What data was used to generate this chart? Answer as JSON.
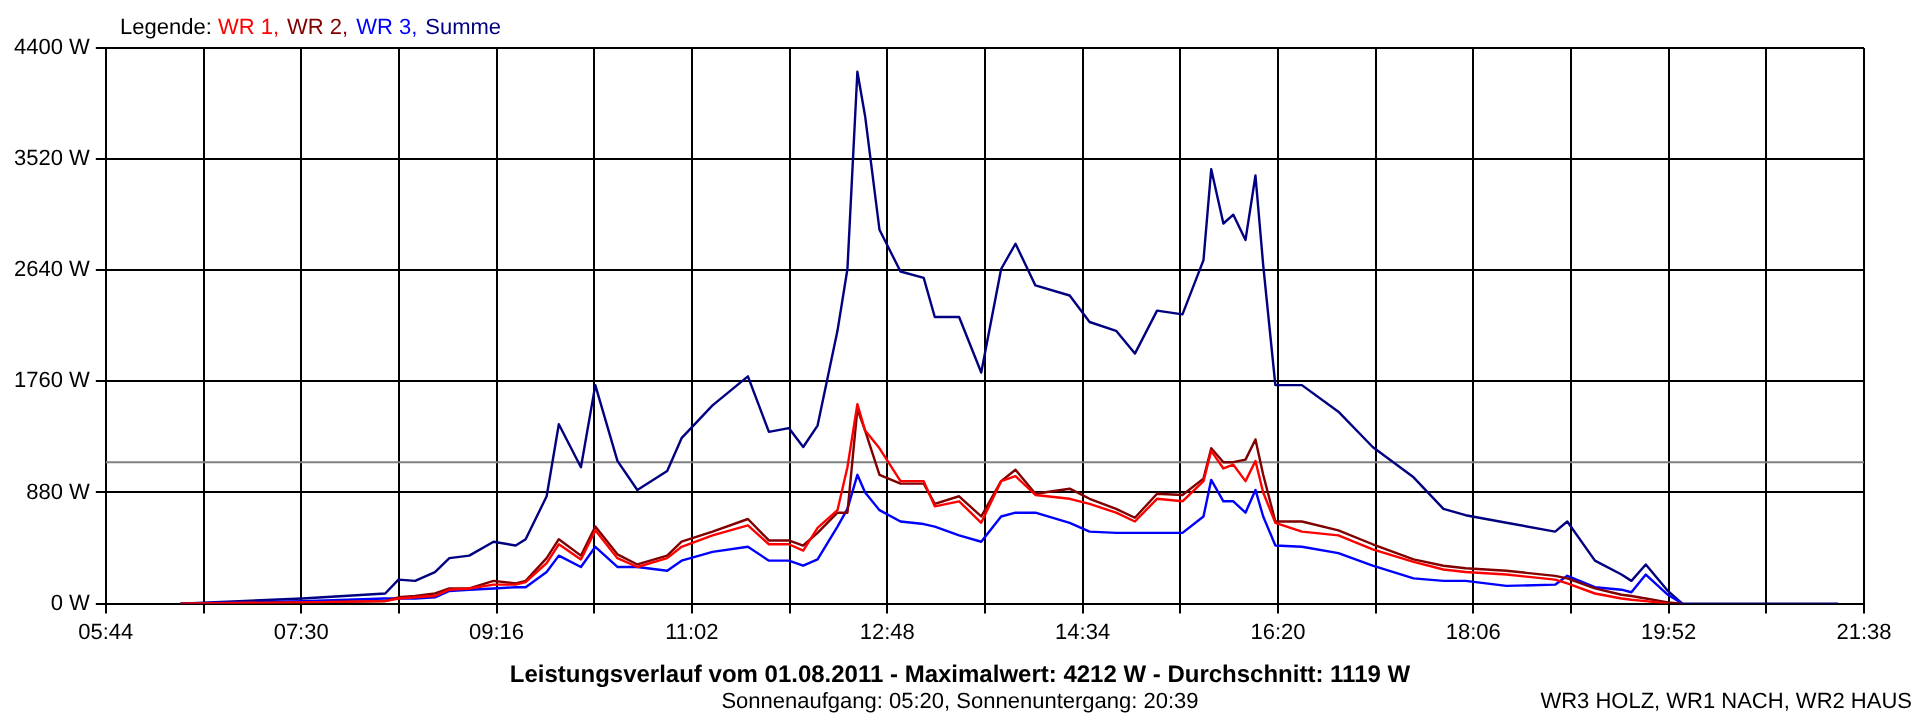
{
  "chart_data": {
    "type": "line",
    "title": "Leistungsverlauf vom 01.08.2011 - Maximalwert: 4212 W - Durchschnitt: 1119 W",
    "subtitle": "Sonnenaufgang: 05:20, Sonnenuntergang: 20:39",
    "annotations": [
      "WR3 HOLZ, WR1 NACH, WR2 HAUS"
    ],
    "legend_title": "Legende:",
    "legend": "top left",
    "grid": true,
    "marker": "none",
    "line_style": "solid",
    "x": [
      6.41,
      7.51,
      8.26,
      8.38,
      8.53,
      8.71,
      8.84,
      9.02,
      9.24,
      9.44,
      9.53,
      9.72,
      9.83,
      10.03,
      10.16,
      10.36,
      10.54,
      10.81,
      10.94,
      11.22,
      11.54,
      11.73,
      11.91,
      12.04,
      12.17,
      12.35,
      12.44,
      12.53,
      12.6,
      12.73,
      12.92,
      13.13,
      13.23,
      13.45,
      13.65,
      13.83,
      13.96,
      14.14,
      14.45,
      14.63,
      14.87,
      15.04,
      15.24,
      15.47,
      15.66,
      15.73,
      15.84,
      15.93,
      16.04,
      16.13,
      16.2,
      16.31,
      16.55,
      16.88,
      17.19,
      17.56,
      17.83,
      18.03,
      18.4,
      18.84,
      18.95,
      19.2,
      19.44,
      19.53,
      19.66,
      19.86,
      19.99,
      21.4
    ],
    "series": [
      {
        "name": "WR 1,",
        "color": "#ff0000",
        "values": [
          0,
          10,
          20,
          40,
          50,
          60,
          110,
          120,
          150,
          150,
          170,
          320,
          470,
          350,
          580,
          360,
          290,
          360,
          450,
          540,
          620,
          470,
          470,
          420,
          600,
          740,
          1080,
          1580,
          1370,
          1230,
          970,
          970,
          770,
          810,
          640,
          970,
          1010,
          860,
          830,
          790,
          720,
          650,
          830,
          810,
          970,
          1210,
          1070,
          1100,
          970,
          1130,
          880,
          640,
          570,
          540,
          430,
          330,
          270,
          250,
          230,
          190,
          160,
          80,
          40,
          30,
          20,
          0,
          null,
          null
        ]
      },
      {
        "name": "WR 2,",
        "color": "#800000",
        "values": [
          0,
          10,
          20,
          50,
          60,
          80,
          120,
          120,
          180,
          160,
          180,
          360,
          510,
          380,
          610,
          390,
          310,
          380,
          490,
          570,
          670,
          500,
          500,
          460,
          560,
          720,
          720,
          1540,
          1370,
          1020,
          950,
          950,
          790,
          850,
          690,
          970,
          1060,
          870,
          910,
          830,
          750,
          680,
          870,
          860,
          990,
          1230,
          1120,
          1120,
          1140,
          1300,
          1020,
          650,
          650,
          580,
          470,
          350,
          300,
          280,
          260,
          220,
          200,
          120,
          70,
          60,
          40,
          10,
          0,
          null
        ]
      },
      {
        "name": "WR 3,",
        "color": "#0000ff",
        "values": [
          0,
          20,
          40,
          40,
          40,
          50,
          100,
          110,
          120,
          130,
          130,
          250,
          380,
          290,
          450,
          290,
          290,
          260,
          340,
          410,
          450,
          340,
          340,
          300,
          350,
          610,
          750,
          1020,
          880,
          740,
          650,
          630,
          610,
          540,
          490,
          690,
          720,
          720,
          640,
          570,
          560,
          560,
          560,
          560,
          690,
          980,
          810,
          810,
          720,
          900,
          690,
          460,
          450,
          400,
          300,
          200,
          180,
          180,
          140,
          150,
          220,
          130,
          110,
          90,
          230,
          70,
          0,
          null
        ]
      },
      {
        "name": "Summe",
        "color": "#000080",
        "values": [
          0,
          40,
          80,
          190,
          180,
          250,
          360,
          380,
          490,
          460,
          510,
          850,
          1420,
          1080,
          1730,
          1130,
          900,
          1050,
          1310,
          1570,
          1800,
          1360,
          1390,
          1240,
          1410,
          2160,
          2650,
          4212,
          3860,
          2960,
          2630,
          2580,
          2270,
          2270,
          1830,
          2650,
          2850,
          2520,
          2440,
          2230,
          2160,
          1980,
          2320,
          2290,
          2720,
          3440,
          3010,
          3080,
          2880,
          3390,
          2680,
          1730,
          1730,
          1520,
          1240,
          1000,
          750,
          700,
          640,
          570,
          650,
          340,
          230,
          180,
          310,
          100,
          0,
          0
        ]
      }
    ],
    "ref_lines": [
      {
        "axis": "y",
        "value": 1119,
        "color": "#808080"
      }
    ],
    "xlim": [
      5.7333,
      21.6333
    ],
    "xticks": [
      {
        "value": 5.7333,
        "label": "05:44"
      },
      {
        "value": 6.6167,
        "label": null
      },
      {
        "value": 7.5,
        "label": "07:30"
      },
      {
        "value": 8.3833,
        "label": null
      },
      {
        "value": 9.2667,
        "label": "09:16"
      },
      {
        "value": 10.15,
        "label": null
      },
      {
        "value": 11.0333,
        "label": "11:02"
      },
      {
        "value": 11.9167,
        "label": null
      },
      {
        "value": 12.8,
        "label": "12:48"
      },
      {
        "value": 13.6833,
        "label": null
      },
      {
        "value": 14.5667,
        "label": "14:34"
      },
      {
        "value": 15.45,
        "label": null
      },
      {
        "value": 16.3333,
        "label": "16:20"
      },
      {
        "value": 17.2167,
        "label": null
      },
      {
        "value": 18.1,
        "label": "18:06"
      },
      {
        "value": 18.9833,
        "label": null
      },
      {
        "value": 19.8667,
        "label": "19:52"
      },
      {
        "value": 20.75,
        "label": null
      },
      {
        "value": 21.6333,
        "label": "21:38"
      }
    ],
    "ylim": [
      0,
      4400
    ],
    "yticks": [
      {
        "value": 0,
        "label": "0 W"
      },
      {
        "value": 880,
        "label": "880 W"
      },
      {
        "value": 1760,
        "label": "1760 W"
      },
      {
        "value": 2640,
        "label": "2640 W"
      },
      {
        "value": 3520,
        "label": "3520 W"
      },
      {
        "value": 4400,
        "label": "4400 W"
      }
    ]
  }
}
